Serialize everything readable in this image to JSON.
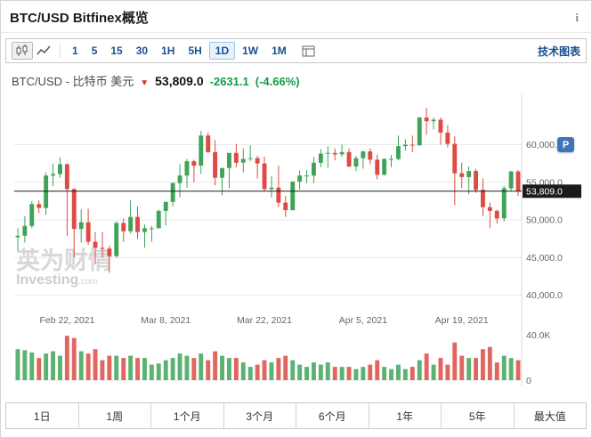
{
  "header": {
    "title": "BTC/USD Bitfinex概览",
    "info_icon": "i"
  },
  "toolbar": {
    "chart_type_icons": [
      "candlestick-chart",
      "line-chart"
    ],
    "intervals": [
      {
        "label": "1"
      },
      {
        "label": "5"
      },
      {
        "label": "15"
      },
      {
        "label": "30"
      },
      {
        "label": "1H"
      },
      {
        "label": "5H"
      },
      {
        "label": "1D",
        "selected": true
      },
      {
        "label": "1W"
      },
      {
        "label": "1M"
      }
    ],
    "indicators_icon": "chart-panel",
    "right_link": "技术图表"
  },
  "quote": {
    "instrument": "BTC/USD - 比特币 美元",
    "arrow": "▼",
    "arrow_color": "#cc3730",
    "price": "53,809.0",
    "change": "-2631.1",
    "change_percent": "(-4.66%)",
    "change_color": "#0f9d45",
    "direction": "down"
  },
  "watermark": {
    "line1": "英为财情",
    "line2_bold": "Investing",
    "line2_small": ".com"
  },
  "overlay_button": "P",
  "range_buttons": [
    "1日",
    "1周",
    "1个月",
    "3个月",
    "6个月",
    "1年",
    "5年",
    "最大值"
  ],
  "chart_data": {
    "type": "candlestick",
    "title": "BTC/USD Bitfinex 1D",
    "interval": "1D",
    "grid": true,
    "y_axis": {
      "ticks": [
        60000,
        55000,
        50000,
        45000,
        40000
      ],
      "labels": [
        "60,000.0",
        "55,000.0",
        "50,000.0",
        "45,000.0",
        "40,000.0"
      ],
      "range": [
        37600,
        66200
      ]
    },
    "x_axis": {
      "labels": [
        {
          "label": "Feb 22, 2021",
          "index": 7
        },
        {
          "label": "Mar 8, 2021",
          "index": 21
        },
        {
          "label": "Mar 22, 2021",
          "index": 35
        },
        {
          "label": "Apr 5, 2021",
          "index": 49
        },
        {
          "label": "Apr 19, 2021",
          "index": 63
        }
      ]
    },
    "volume_axis": {
      "max_label": "40.0K",
      "zero_label": "0",
      "max": 45000,
      "max_tick": 40000
    },
    "current_price": 53809.0,
    "current_price_label": "53,809.0",
    "colors": {
      "up": "#3fa458",
      "down": "#dd4b44",
      "grid": "#e9e9e9",
      "price_line": "#1b1b1b"
    },
    "candle_format": [
      "date",
      "open",
      "high",
      "low",
      "close",
      "volume"
    ],
    "candles": [
      [
        "Feb 15, 2021",
        47700,
        48900,
        45900,
        47900,
        28000
      ],
      [
        "Feb 16, 2021",
        47900,
        50500,
        47000,
        49200,
        27000
      ],
      [
        "Feb 17, 2021",
        49200,
        52500,
        48900,
        52100,
        25000
      ],
      [
        "Feb 18, 2021",
        52100,
        52600,
        50900,
        51600,
        20000
      ],
      [
        "Feb 19, 2021",
        51600,
        56300,
        50700,
        55900,
        24000
      ],
      [
        "Feb 20, 2021",
        55900,
        57500,
        54500,
        56100,
        26000
      ],
      [
        "Feb 21, 2021",
        56100,
        58300,
        55600,
        57400,
        22000
      ],
      [
        "Feb 22, 2021",
        57400,
        57500,
        47900,
        54100,
        40000
      ],
      [
        "Feb 23, 2021",
        54100,
        54200,
        45000,
        48800,
        38000
      ],
      [
        "Feb 24, 2021",
        48800,
        51400,
        47000,
        49700,
        26000
      ],
      [
        "Feb 25, 2021",
        49700,
        51500,
        46700,
        47100,
        24000
      ],
      [
        "Feb 26, 2021",
        47100,
        48400,
        44100,
        46300,
        28000
      ],
      [
        "Feb 27, 2021",
        46300,
        48400,
        45000,
        46200,
        18000
      ],
      [
        "Feb 28, 2021",
        46200,
        46600,
        43000,
        45200,
        22000
      ],
      [
        "Mar 1, 2021",
        45200,
        49800,
        45000,
        49600,
        22000
      ],
      [
        "Mar 2, 2021",
        49600,
        50200,
        47100,
        48500,
        20000
      ],
      [
        "Mar 3, 2021",
        48500,
        52600,
        48200,
        50400,
        22000
      ],
      [
        "Mar 4, 2021",
        50400,
        51800,
        47500,
        48400,
        20000
      ],
      [
        "Mar 5, 2021",
        48400,
        49400,
        46300,
        48900,
        20000
      ],
      [
        "Mar 6, 2021",
        48900,
        49200,
        47100,
        48900,
        14000
      ],
      [
        "Mar 7, 2021",
        48900,
        51400,
        48900,
        51200,
        15000
      ],
      [
        "Mar 8, 2021",
        51200,
        52400,
        49300,
        52400,
        18000
      ],
      [
        "Mar 9, 2021",
        52400,
        55000,
        51800,
        54900,
        20000
      ],
      [
        "Mar 10, 2021",
        54900,
        57400,
        53000,
        55900,
        24000
      ],
      [
        "Mar 11, 2021",
        55900,
        58100,
        54300,
        57800,
        22000
      ],
      [
        "Mar 12, 2021",
        57800,
        58000,
        55000,
        57200,
        20000
      ],
      [
        "Mar 13, 2021",
        57200,
        61800,
        56100,
        61200,
        24000
      ],
      [
        "Mar 14, 2021",
        61200,
        61600,
        58900,
        59000,
        18000
      ],
      [
        "Mar 15, 2021",
        59000,
        60600,
        54600,
        55600,
        26000
      ],
      [
        "Mar 16, 2021",
        55600,
        56900,
        53300,
        56900,
        22000
      ],
      [
        "Mar 17, 2021",
        56900,
        58900,
        54200,
        58900,
        20000
      ],
      [
        "Mar 18, 2021",
        58900,
        60100,
        57000,
        57600,
        20000
      ],
      [
        "Mar 19, 2021",
        57600,
        59500,
        56300,
        58100,
        16000
      ],
      [
        "Mar 20, 2021",
        58100,
        59900,
        57800,
        58200,
        12000
      ],
      [
        "Mar 21, 2021",
        58200,
        58500,
        55500,
        57500,
        14000
      ],
      [
        "Mar 22, 2021",
        57500,
        58400,
        53800,
        54100,
        18000
      ],
      [
        "Mar 23, 2021",
        54100,
        55800,
        53000,
        54300,
        16000
      ],
      [
        "Mar 24, 2021",
        54300,
        57200,
        51700,
        52300,
        20000
      ],
      [
        "Mar 25, 2021",
        52300,
        53200,
        50400,
        51300,
        22000
      ],
      [
        "Mar 26, 2021",
        51300,
        55100,
        51300,
        55100,
        18000
      ],
      [
        "Mar 27, 2021",
        55100,
        56600,
        54000,
        55900,
        14000
      ],
      [
        "Mar 28, 2021",
        55900,
        56600,
        54900,
        55900,
        12000
      ],
      [
        "Mar 29, 2021",
        55900,
        58400,
        54900,
        57600,
        16000
      ],
      [
        "Mar 30, 2021",
        57600,
        59400,
        57000,
        58800,
        14000
      ],
      [
        "Mar 31, 2021",
        58800,
        59800,
        56900,
        58900,
        16000
      ],
      [
        "Apr 1, 2021",
        58900,
        59500,
        57900,
        58700,
        12000
      ],
      [
        "Apr 2, 2021",
        58700,
        60000,
        58400,
        59000,
        12000
      ],
      [
        "Apr 3, 2021",
        59000,
        59500,
        57000,
        57100,
        12000
      ],
      [
        "Apr 4, 2021",
        57100,
        58500,
        56500,
        58200,
        10000
      ],
      [
        "Apr 5, 2021",
        58200,
        59200,
        56800,
        59100,
        12000
      ],
      [
        "Apr 6, 2021",
        59100,
        59500,
        57400,
        58000,
        14000
      ],
      [
        "Apr 7, 2021",
        58000,
        58700,
        55400,
        56000,
        18000
      ],
      [
        "Apr 8, 2021",
        56000,
        58200,
        55900,
        58100,
        12000
      ],
      [
        "Apr 9, 2021",
        58100,
        58600,
        57000,
        58100,
        10000
      ],
      [
        "Apr 10, 2021",
        58100,
        61200,
        57900,
        59800,
        14000
      ],
      [
        "Apr 11, 2021",
        59800,
        60700,
        59200,
        60000,
        10000
      ],
      [
        "Apr 12, 2021",
        60000,
        61200,
        59000,
        59900,
        12000
      ],
      [
        "Apr 13, 2021",
        59900,
        63700,
        59900,
        63600,
        18000
      ],
      [
        "Apr 14, 2021",
        63600,
        64900,
        61300,
        63100,
        24000
      ],
      [
        "Apr 15, 2021",
        63100,
        63600,
        62000,
        63300,
        14000
      ],
      [
        "Apr 16, 2021",
        63300,
        63600,
        60000,
        61600,
        20000
      ],
      [
        "Apr 17, 2021",
        61600,
        62600,
        59600,
        60100,
        14000
      ],
      [
        "Apr 18, 2021",
        60100,
        61100,
        52000,
        56200,
        34000
      ],
      [
        "Apr 19, 2021",
        56200,
        57600,
        54200,
        55700,
        22000
      ],
      [
        "Apr 20, 2021",
        55700,
        57100,
        53400,
        56500,
        20000
      ],
      [
        "Apr 21, 2021",
        56500,
        56800,
        53600,
        54000,
        20000
      ],
      [
        "Apr 22, 2021",
        54000,
        55500,
        50500,
        51700,
        28000
      ],
      [
        "Apr 23, 2021",
        51700,
        52300,
        48900,
        51200,
        30000
      ],
      [
        "Apr 24, 2021",
        51200,
        51400,
        49500,
        50200,
        16000
      ],
      [
        "Apr 25, 2021",
        50200,
        54500,
        49800,
        54200,
        22000
      ],
      [
        "Apr 26, 2021",
        54200,
        56500,
        53900,
        56440,
        20000
      ],
      [
        "Apr 27, 2021",
        56440,
        56600,
        53200,
        53809,
        18000
      ]
    ]
  }
}
